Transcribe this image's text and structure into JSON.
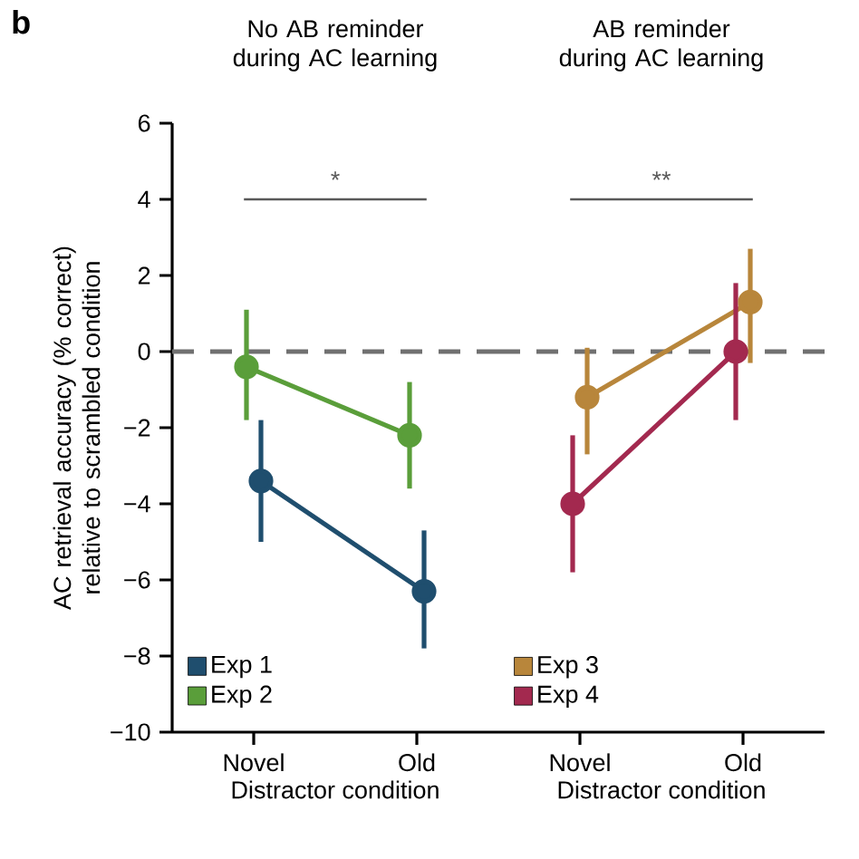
{
  "chart_data": [
    {
      "type": "line",
      "title": "No AB reminder during AC learning",
      "xlabel": "Distractor condition",
      "ylabel": "AC retrieval accuracy (% correct) relative to scrambled condition",
      "categories": [
        "Novel",
        "Old"
      ],
      "series": [
        {
          "name": "Exp 1",
          "color": "#1f4e6e",
          "values": [
            -3.4,
            -6.3
          ],
          "errors": [
            [
              -5.0,
              -1.8
            ],
            [
              -7.8,
              -4.7
            ]
          ]
        },
        {
          "name": "Exp 2",
          "color": "#5a9e3a",
          "values": [
            -0.4,
            -2.2
          ],
          "errors": [
            [
              -1.8,
              1.1
            ],
            [
              -3.6,
              -0.8
            ]
          ]
        }
      ],
      "ylim": [
        -10,
        6
      ],
      "yticks": [
        {
          "value": -10,
          "label": "−10"
        },
        {
          "value": -8,
          "label": "−8"
        },
        {
          "value": -6,
          "label": "−6"
        },
        {
          "value": -4,
          "label": "−4"
        },
        {
          "value": -2,
          "label": "−2"
        },
        0,
        2,
        4,
        6
      ],
      "ref_lines": [
        {
          "axis": "y",
          "value": 0,
          "color": "#707070",
          "line_style": "dashed"
        }
      ],
      "annotations": [
        "b",
        "*"
      ],
      "legend": "bottom left",
      "marker": "circle",
      "line_style": "solid",
      "grid": false
    },
    {
      "type": "line",
      "title": "AB reminder during AC learning",
      "xlabel": "Distractor condition",
      "categories": [
        "Novel",
        "Old"
      ],
      "series": [
        {
          "name": "Exp 3",
          "color": "#b8863b",
          "values": [
            -1.2,
            1.3
          ],
          "errors": [
            [
              -2.7,
              0.1
            ],
            [
              -0.3,
              2.7
            ]
          ]
        },
        {
          "name": "Exp 4",
          "color": "#a3294f",
          "values": [
            -4.0,
            0.0
          ],
          "errors": [
            [
              -5.8,
              -2.2
            ],
            [
              -1.8,
              1.8
            ]
          ]
        }
      ],
      "ylim": [
        -10,
        6
      ],
      "tick_labels": "x",
      "ref_lines": [
        {
          "axis": "y",
          "value": 0,
          "color": "#707070",
          "line_style": "dashed"
        }
      ],
      "annotations": [
        "**"
      ],
      "legend": "bottom left",
      "marker": "circle",
      "line_style": "solid",
      "grid": false
    }
  ]
}
